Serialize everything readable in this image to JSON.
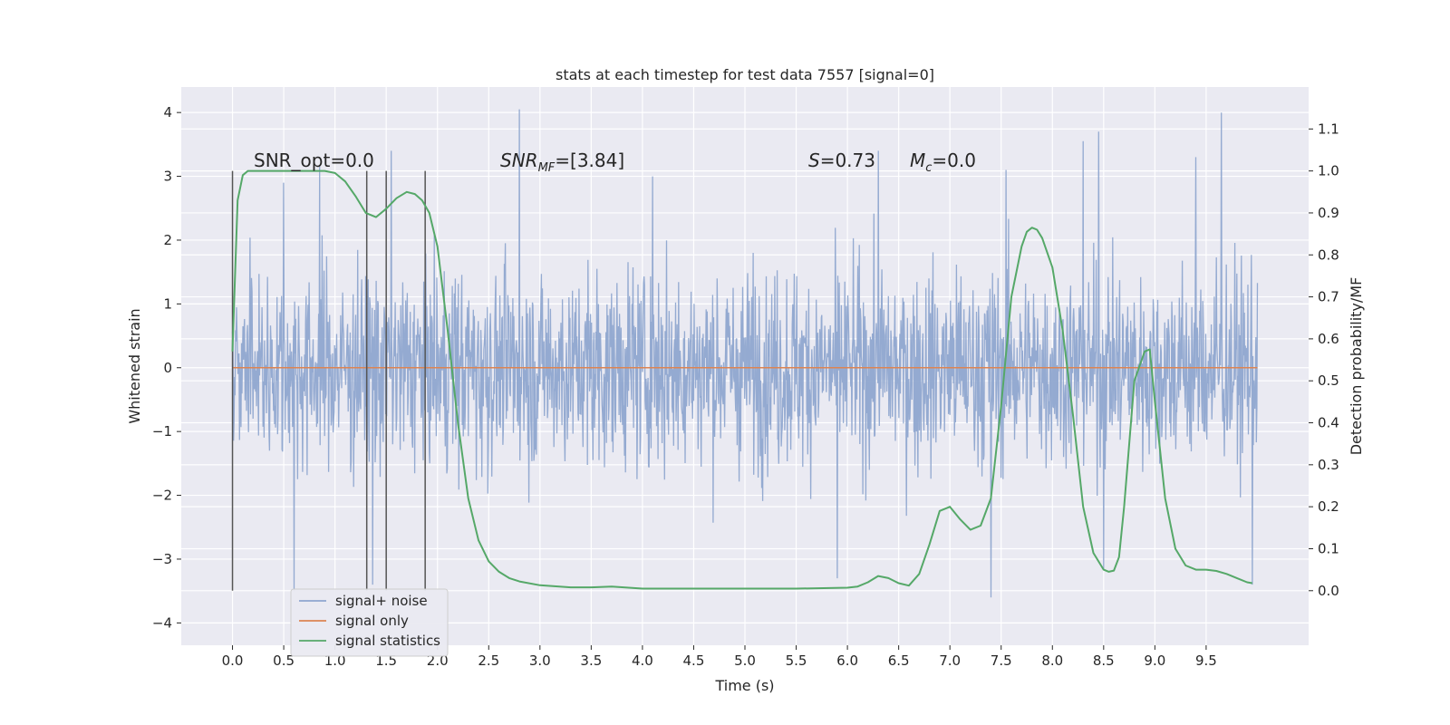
{
  "chart_data": {
    "type": "line",
    "title": "stats at each timestep for test data 7557 [signal=0]",
    "xlabel": "Time (s)",
    "ylabel": "Whitened strain",
    "y2label": "Detection probability/MF",
    "xlim": [
      -0.5,
      10.5
    ],
    "ylim": [
      -4.35,
      4.4
    ],
    "y2lim": [
      -0.13,
      1.2
    ],
    "x_ticks": [
      "0.0",
      "0.5",
      "1.0",
      "1.5",
      "2.0",
      "2.5",
      "3.0",
      "3.5",
      "4.0",
      "4.5",
      "5.0",
      "5.5",
      "6.0",
      "6.5",
      "7.0",
      "7.5",
      "8.0",
      "8.5",
      "9.0",
      "9.5"
    ],
    "y_ticks": [
      "4",
      "3",
      "2",
      "1",
      "0",
      "−1",
      "−2",
      "−3",
      "−4"
    ],
    "y2_ticks": [
      "1.1",
      "1.0",
      "0.9",
      "0.8",
      "0.7",
      "0.6",
      "0.5",
      "0.4",
      "0.3",
      "0.2",
      "0.1",
      "0.0"
    ],
    "grid": true,
    "legend_position": "lower-left",
    "annotations": {
      "snr_opt": "SNR_opt=0.0",
      "snr_mf_var": "SNR",
      "snr_mf_sub": "MF",
      "snr_mf_val": "=[3.84]",
      "s_var": "S",
      "s_val": "=0.73",
      "mc_var": "M",
      "mc_sub": "c",
      "mc_val": "=0.0"
    },
    "vertical_markers_x": [
      0.0,
      1.31,
      1.5,
      1.88
    ],
    "series": [
      {
        "name": "signal+ noise",
        "color": "#8fa6cf",
        "x_range": [
          0.0,
          10.0
        ],
        "envelope_upper_typical": 2.3,
        "envelope_lower_typical": -2.3,
        "spikes": [
          [
            0.5,
            2.9
          ],
          [
            0.85,
            3.15
          ],
          [
            1.55,
            3.4
          ],
          [
            2.8,
            4.05
          ],
          [
            4.1,
            3.0
          ],
          [
            6.3,
            3.4
          ],
          [
            7.55,
            3.1
          ],
          [
            8.3,
            3.55
          ],
          [
            8.45,
            3.7
          ],
          [
            9.4,
            3.3
          ],
          [
            9.65,
            4.0
          ],
          [
            0.6,
            -3.5
          ],
          [
            1.37,
            -3.4
          ],
          [
            5.9,
            -3.3
          ],
          [
            7.4,
            -3.6
          ],
          [
            8.5,
            -3.15
          ],
          [
            9.95,
            -3.4
          ]
        ]
      },
      {
        "name": "signal only",
        "color": "#dd8452",
        "x": [
          0.0,
          10.0
        ],
        "y": [
          0.0,
          0.0
        ]
      },
      {
        "name": "signal statistics",
        "color": "#55a868",
        "axis": "right",
        "x": [
          0.0,
          0.05,
          0.1,
          0.15,
          0.2,
          0.3,
          0.5,
          0.7,
          0.9,
          1.0,
          1.1,
          1.2,
          1.3,
          1.4,
          1.5,
          1.6,
          1.7,
          1.78,
          1.85,
          1.92,
          2.0,
          2.1,
          2.2,
          2.3,
          2.4,
          2.5,
          2.6,
          2.7,
          2.8,
          3.0,
          3.3,
          3.5,
          3.7,
          4.0,
          4.5,
          5.0,
          5.5,
          6.0,
          6.1,
          6.2,
          6.3,
          6.4,
          6.5,
          6.6,
          6.7,
          6.8,
          6.9,
          7.0,
          7.1,
          7.2,
          7.3,
          7.4,
          7.5,
          7.6,
          7.7,
          7.75,
          7.8,
          7.85,
          7.9,
          8.0,
          8.1,
          8.2,
          8.3,
          8.4,
          8.5,
          8.55,
          8.6,
          8.65,
          8.7,
          8.8,
          8.9,
          8.95,
          9.0,
          9.1,
          9.2,
          9.3,
          9.4,
          9.5,
          9.6,
          9.7,
          9.8,
          9.9,
          9.95
        ],
        "y": [
          0.57,
          0.93,
          0.99,
          1.0,
          1.0,
          1.0,
          1.0,
          1.0,
          1.0,
          0.995,
          0.975,
          0.94,
          0.9,
          0.89,
          0.91,
          0.935,
          0.95,
          0.945,
          0.93,
          0.9,
          0.82,
          0.62,
          0.4,
          0.22,
          0.12,
          0.07,
          0.045,
          0.03,
          0.022,
          0.013,
          0.008,
          0.008,
          0.01,
          0.005,
          0.005,
          0.005,
          0.005,
          0.007,
          0.01,
          0.02,
          0.035,
          0.03,
          0.018,
          0.012,
          0.04,
          0.11,
          0.19,
          0.2,
          0.17,
          0.145,
          0.155,
          0.22,
          0.44,
          0.7,
          0.82,
          0.855,
          0.865,
          0.86,
          0.84,
          0.77,
          0.62,
          0.42,
          0.2,
          0.09,
          0.05,
          0.045,
          0.048,
          0.08,
          0.2,
          0.5,
          0.57,
          0.575,
          0.45,
          0.22,
          0.1,
          0.06,
          0.05,
          0.05,
          0.047,
          0.04,
          0.03,
          0.02,
          0.018
        ]
      }
    ]
  }
}
